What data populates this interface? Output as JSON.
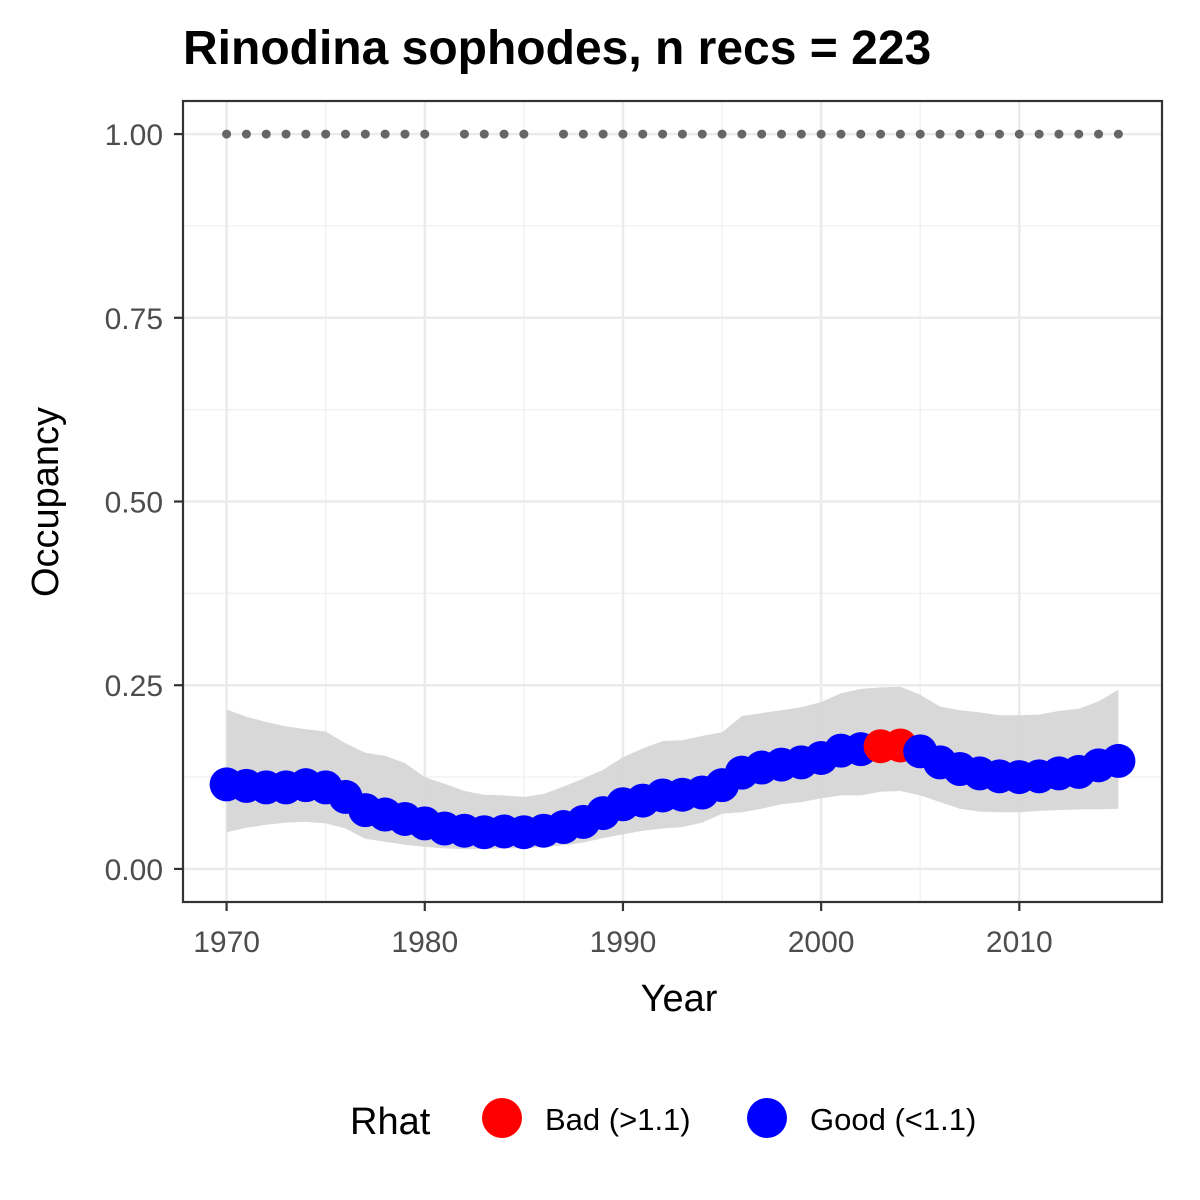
{
  "chart_data": {
    "type": "scatter",
    "title": "Rinodina sophodes, n recs = 223",
    "xlabel": "Year",
    "ylabel": "Occupancy",
    "xlim": [
      1967.8,
      2017.2
    ],
    "ylim": [
      -0.045,
      1.045
    ],
    "x_ticks": [
      "1970",
      "1980",
      "1990",
      "2000",
      "2010"
    ],
    "y_ticks": [
      "0.00",
      "0.25",
      "0.50",
      "0.75",
      "1.00"
    ],
    "grid": true,
    "legend": {
      "title": "Rhat",
      "position": "bottom",
      "entries": [
        {
          "label": "Bad (>1.1)",
          "color": "#ff0000"
        },
        {
          "label": "Good (<1.1)",
          "color": "#0000ff"
        }
      ]
    },
    "colors": {
      "bad": "#ff0000",
      "good": "#0000ff",
      "ribbon": "#d6d6d6",
      "records": "#666666"
    },
    "series": [
      {
        "x": [
          1970,
          1971,
          1972,
          1973,
          1974,
          1975,
          1976,
          1977,
          1978,
          1979,
          1980,
          1981,
          1982,
          1983,
          1984,
          1985,
          1986,
          1987,
          1988,
          1989,
          1990,
          1991,
          1992,
          1993,
          1994,
          1995,
          1996,
          1997,
          1998,
          1999,
          2000,
          2001,
          2002,
          2003,
          2004,
          2005,
          2006,
          2007,
          2008,
          2009,
          2010,
          2011,
          2012,
          2013,
          2014,
          2015
        ],
        "y": [
          0.115,
          0.113,
          0.111,
          0.111,
          0.114,
          0.111,
          0.098,
          0.08,
          0.074,
          0.068,
          0.062,
          0.055,
          0.052,
          0.05,
          0.051,
          0.05,
          0.052,
          0.057,
          0.064,
          0.076,
          0.088,
          0.093,
          0.1,
          0.101,
          0.104,
          0.114,
          0.131,
          0.138,
          0.142,
          0.145,
          0.151,
          0.161,
          0.163,
          0.167,
          0.168,
          0.16,
          0.145,
          0.136,
          0.13,
          0.126,
          0.125,
          0.126,
          0.13,
          0.132,
          0.141,
          0.147
        ],
        "lower": [
          0.05,
          0.056,
          0.06,
          0.063,
          0.064,
          0.062,
          0.055,
          0.041,
          0.037,
          0.033,
          0.03,
          0.028,
          0.027,
          0.027,
          0.028,
          0.028,
          0.03,
          0.032,
          0.036,
          0.042,
          0.047,
          0.052,
          0.055,
          0.057,
          0.063,
          0.075,
          0.077,
          0.082,
          0.088,
          0.091,
          0.096,
          0.1,
          0.1,
          0.105,
          0.106,
          0.1,
          0.091,
          0.082,
          0.078,
          0.077,
          0.077,
          0.079,
          0.08,
          0.081,
          0.081,
          0.082
        ],
        "upper": [
          0.217,
          0.207,
          0.2,
          0.194,
          0.19,
          0.187,
          0.171,
          0.158,
          0.154,
          0.144,
          0.125,
          0.116,
          0.106,
          0.101,
          0.1,
          0.098,
          0.102,
          0.112,
          0.123,
          0.135,
          0.152,
          0.164,
          0.174,
          0.175,
          0.181,
          0.186,
          0.208,
          0.212,
          0.216,
          0.22,
          0.227,
          0.239,
          0.245,
          0.247,
          0.248,
          0.237,
          0.221,
          0.216,
          0.213,
          0.209,
          0.209,
          0.21,
          0.215,
          0.218,
          0.228,
          0.244
        ],
        "rhat": [
          "good",
          "good",
          "good",
          "good",
          "good",
          "good",
          "good",
          "good",
          "good",
          "good",
          "good",
          "good",
          "good",
          "good",
          "good",
          "good",
          "good",
          "good",
          "good",
          "good",
          "good",
          "good",
          "good",
          "good",
          "good",
          "good",
          "good",
          "good",
          "good",
          "good",
          "good",
          "good",
          "good",
          "bad",
          "bad",
          "good",
          "good",
          "good",
          "good",
          "good",
          "good",
          "good",
          "good",
          "good",
          "good",
          "good"
        ]
      }
    ],
    "records": {
      "years": [
        1970,
        1971,
        1972,
        1973,
        1974,
        1975,
        1976,
        1977,
        1978,
        1979,
        1980,
        1982,
        1983,
        1984,
        1985,
        1987,
        1988,
        1989,
        1990,
        1991,
        1992,
        1993,
        1994,
        1995,
        1996,
        1997,
        1998,
        1999,
        2000,
        2001,
        2002,
        2003,
        2004,
        2005,
        2006,
        2007,
        2008,
        2009,
        2010,
        2011,
        2012,
        2013,
        2014,
        2015
      ],
      "y": 1.0
    }
  }
}
